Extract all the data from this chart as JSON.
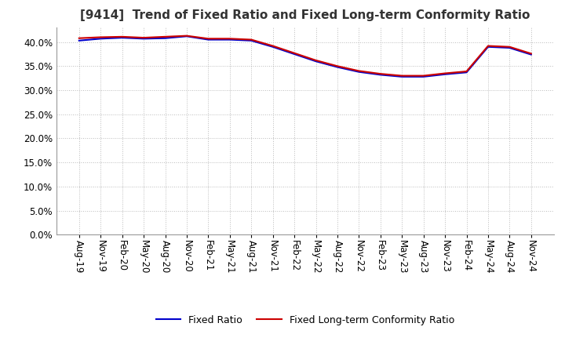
{
  "title": "[9414]  Trend of Fixed Ratio and Fixed Long-term Conformity Ratio",
  "title_fontsize": 11,
  "background_color": "#ffffff",
  "plot_bg_color": "#ffffff",
  "grid_color": "#bbbbbb",
  "ylim": [
    0,
    0.43
  ],
  "yticks": [
    0.0,
    0.05,
    0.1,
    0.15,
    0.2,
    0.25,
    0.3,
    0.35,
    0.4
  ],
  "x_labels": [
    "Aug-19",
    "Nov-19",
    "Feb-20",
    "May-20",
    "Aug-20",
    "Nov-20",
    "Feb-21",
    "May-21",
    "Aug-21",
    "Nov-21",
    "Feb-22",
    "May-22",
    "Aug-22",
    "Nov-22",
    "Feb-23",
    "May-23",
    "Aug-23",
    "Nov-23",
    "Feb-24",
    "May-24",
    "Aug-24",
    "Nov-24"
  ],
  "fixed_ratio": [
    0.403,
    0.407,
    0.409,
    0.407,
    0.408,
    0.412,
    0.405,
    0.405,
    0.403,
    0.39,
    0.375,
    0.36,
    0.348,
    0.338,
    0.332,
    0.328,
    0.328,
    0.333,
    0.337,
    0.39,
    0.388,
    0.374
  ],
  "fixed_lt_ratio": [
    0.408,
    0.41,
    0.411,
    0.409,
    0.411,
    0.413,
    0.407,
    0.407,
    0.405,
    0.392,
    0.377,
    0.362,
    0.35,
    0.34,
    0.334,
    0.33,
    0.33,
    0.335,
    0.339,
    0.392,
    0.39,
    0.376
  ],
  "fixed_ratio_color": "#0000cc",
  "fixed_lt_ratio_color": "#cc0000",
  "line_width": 1.5,
  "legend_labels": [
    "Fixed Ratio",
    "Fixed Long-term Conformity Ratio"
  ],
  "xlabel_rotation": 270,
  "tick_fontsize": 8.5,
  "ylabel_fontsize": 9
}
